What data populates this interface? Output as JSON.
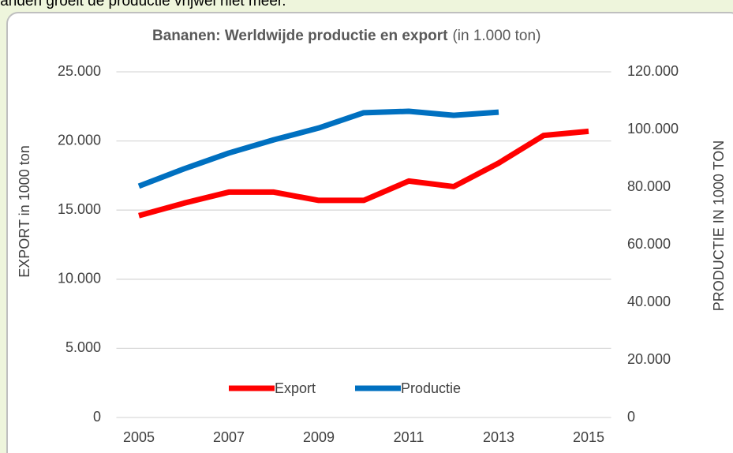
{
  "intro_text": "landen groeit de productie vrijwel niet meer.",
  "chart_data": {
    "type": "line",
    "title": "Bananen: Werldwijde productie en export",
    "subtitle": "(in 1.000 ton)",
    "y_label": "EXPORT in 1000 ton",
    "y2_label": "PRODUCTIE IN 1000 TON",
    "x": [
      2005,
      2006,
      2007,
      2008,
      2009,
      2010,
      2011,
      2012,
      2013,
      2014,
      2015
    ],
    "xlim": [
      2004.5,
      2015.5
    ],
    "xticks": [
      2005,
      2007,
      2009,
      2011,
      2013,
      2015
    ],
    "ylim": [
      0,
      25000
    ],
    "yticks": [
      0,
      {
        "value": 5000,
        "label": "5.000"
      },
      {
        "value": 10000,
        "label": "10.000"
      },
      {
        "value": 15000,
        "label": "15.000"
      },
      {
        "value": 20000,
        "label": "20.000"
      },
      {
        "value": 25000,
        "label": "25.000"
      }
    ],
    "y2lim": [
      0,
      120000
    ],
    "y2ticks": [
      0,
      {
        "value": 20000,
        "label": "20.000"
      },
      {
        "value": 40000,
        "label": "40.000"
      },
      {
        "value": 60000,
        "label": "60.000"
      },
      {
        "value": 80000,
        "label": "80.000"
      },
      {
        "value": 100000,
        "label": "100.000"
      },
      {
        "value": 120000,
        "label": "120.000"
      }
    ],
    "grid": true,
    "legend": "bottom",
    "series": [
      {
        "name": "Export",
        "color": "#ff0000",
        "values": [
          14600,
          15500,
          16300,
          16300,
          15700,
          15700,
          17100,
          16700,
          18400,
          20400,
          20700
        ]
      },
      {
        "name": "Productie",
        "color": "#0070c0",
        "axis": "y2",
        "values": [
          80300,
          86300,
          91800,
          96400,
          100500,
          105800,
          106300,
          104900,
          106000,
          null,
          null
        ]
      }
    ]
  }
}
